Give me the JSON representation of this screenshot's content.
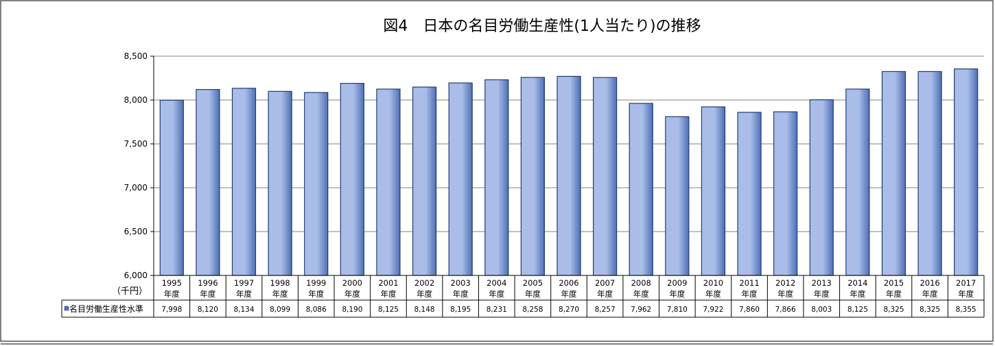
{
  "chart_data": {
    "type": "bar",
    "title": "図4　日本の名目労働生産性(1人当たり)の推移",
    "unit_label": "（千円）",
    "categories": [
      [
        "1995",
        "年度"
      ],
      [
        "1996",
        "年度"
      ],
      [
        "1997",
        "年度"
      ],
      [
        "1998",
        "年度"
      ],
      [
        "1999",
        "年度"
      ],
      [
        "2000",
        "年度"
      ],
      [
        "2001",
        "年度"
      ],
      [
        "2002",
        "年度"
      ],
      [
        "2003",
        "年度"
      ],
      [
        "2004",
        "年度"
      ],
      [
        "2005",
        "年度"
      ],
      [
        "2006",
        "年度"
      ],
      [
        "2007",
        "年度"
      ],
      [
        "2008",
        "年度"
      ],
      [
        "2009",
        "年度"
      ],
      [
        "2010",
        "年度"
      ],
      [
        "2011",
        "年度"
      ],
      [
        "2012",
        "年度"
      ],
      [
        "2013",
        "年度"
      ],
      [
        "2014",
        "年度"
      ],
      [
        "2015",
        "年度"
      ],
      [
        "2016",
        "年度"
      ],
      [
        "2017",
        "年度"
      ]
    ],
    "series": [
      {
        "name": "名目労働生産性水準",
        "values": [
          7998,
          8120,
          8134,
          8099,
          8086,
          8190,
          8125,
          8148,
          8195,
          8231,
          8258,
          8270,
          8257,
          7962,
          7810,
          7922,
          7860,
          7866,
          8003,
          8125,
          8325,
          8325,
          8355
        ],
        "value_labels": [
          "7,998",
          "8,120",
          "8,134",
          "8,099",
          "8,086",
          "8,190",
          "8,125",
          "8,148",
          "8,195",
          "8,231",
          "8,258",
          "8,270",
          "8,257",
          "7,962",
          "7,810",
          "7,922",
          "7,860",
          "7,866",
          "8,003",
          "8,125",
          "8,325",
          "8,325",
          "8,355"
        ]
      }
    ],
    "ylim": [
      6000,
      8500
    ],
    "yticks": [
      6000,
      6500,
      7000,
      7500,
      8000,
      8500
    ],
    "ytick_labels": [
      "6,000",
      "6,500",
      "7,000",
      "7,500",
      "8,000",
      "8,500"
    ],
    "grid": true,
    "legend": "data-table",
    "colors": {
      "bar_fill_light": "#a9bde8",
      "bar_fill_dark": "#4f6fb5",
      "bar_stroke": "#1f3b70",
      "legend_marker": "#4f6fb5"
    }
  }
}
